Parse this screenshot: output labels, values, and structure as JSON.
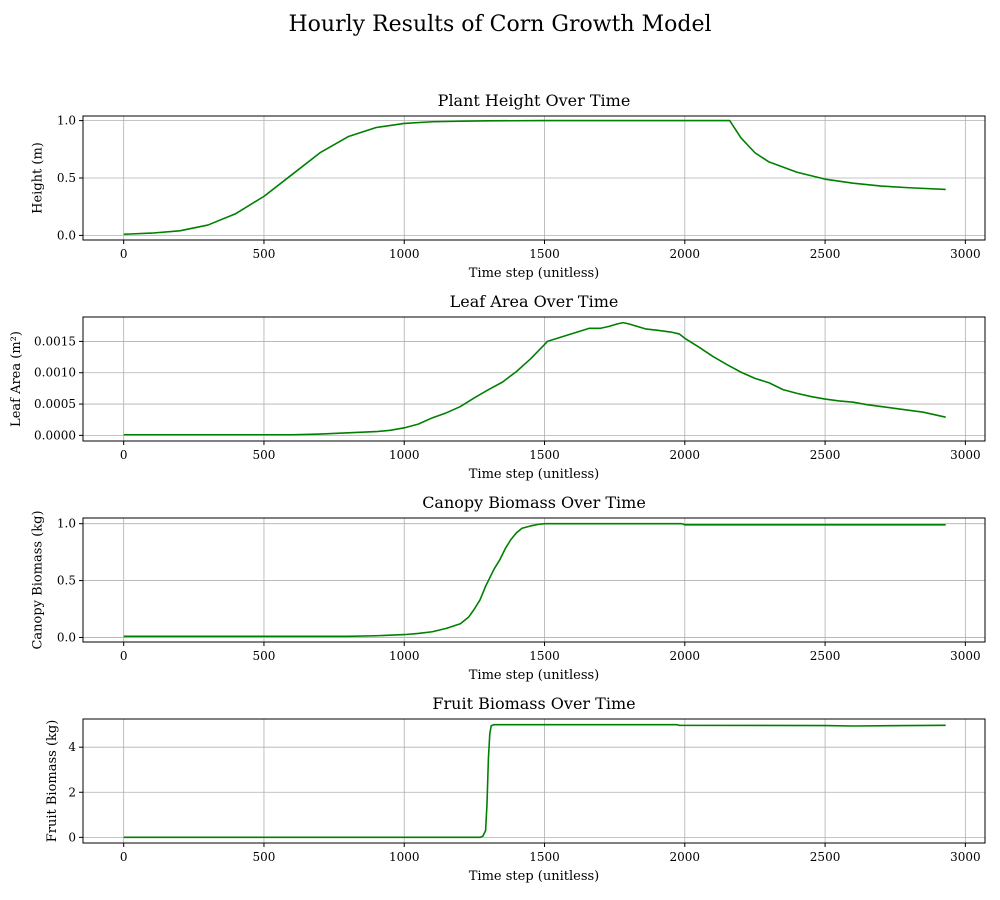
{
  "figure": {
    "title": "Hourly Results of Corn Growth Model"
  },
  "colors": {
    "line": "#008000",
    "grid": "#b0b0b0",
    "axes": "#000000"
  },
  "chart_data": [
    {
      "type": "line",
      "title": "Plant Height Over Time",
      "xlabel": "Time step (unitless)",
      "ylabel": "Height (m)",
      "xlim": [
        -145,
        3070
      ],
      "ylim": [
        -0.04,
        1.04
      ],
      "xticks": [
        0,
        500,
        1000,
        1500,
        2000,
        2500,
        3000
      ],
      "xticklabels": [
        "0",
        "500",
        "1000",
        "1500",
        "2000",
        "2500",
        "3000"
      ],
      "yticks": [
        0,
        0.5,
        1.0
      ],
      "yticklabels": [
        "0.0",
        "0.5",
        "1.0"
      ],
      "grid": true,
      "series": [
        {
          "x": [
            0,
            100,
            200,
            300,
            400,
            500,
            600,
            700,
            800,
            900,
            1000,
            1100,
            1200,
            1300,
            1500,
            1800,
            2000,
            2150,
            2160,
            2200,
            2250,
            2300,
            2400,
            2500,
            2600,
            2700,
            2800,
            2930
          ],
          "values": [
            0.01,
            0.02,
            0.04,
            0.09,
            0.19,
            0.34,
            0.53,
            0.72,
            0.86,
            0.94,
            0.975,
            0.99,
            0.995,
            0.998,
            1.0,
            1.0,
            1.0,
            1.0,
            1.0,
            0.85,
            0.72,
            0.64,
            0.55,
            0.49,
            0.455,
            0.43,
            0.415,
            0.4
          ]
        }
      ]
    },
    {
      "type": "line",
      "title": "Leaf Area Over Time",
      "xlabel": "Time step (unitless)",
      "ylabel": "Leaf Area (m²)",
      "xlim": [
        -145,
        3070
      ],
      "ylim": [
        -9e-05,
        0.00189
      ],
      "xticks": [
        0,
        500,
        1000,
        1500,
        2000,
        2500,
        3000
      ],
      "xticklabels": [
        "0",
        "500",
        "1000",
        "1500",
        "2000",
        "2500",
        "3000"
      ],
      "yticks": [
        0,
        0.0005,
        0.001,
        0.0015
      ],
      "yticklabels": [
        "0.0000",
        "0.0005",
        "0.0010",
        "0.0015"
      ],
      "grid": true,
      "series": [
        {
          "x": [
            0,
            300,
            600,
            700,
            800,
            900,
            950,
            1000,
            1050,
            1100,
            1150,
            1200,
            1250,
            1300,
            1350,
            1400,
            1450,
            1500,
            1510,
            1560,
            1610,
            1660,
            1700,
            1730,
            1760,
            1780,
            1800,
            1830,
            1860,
            1900,
            1950,
            1980,
            2000,
            2050,
            2100,
            2150,
            2200,
            2250,
            2300,
            2350,
            2400,
            2450,
            2500,
            2550,
            2600,
            2650,
            2700,
            2750,
            2800,
            2850,
            2930
          ],
          "values": [
            1e-05,
            1e-05,
            1e-05,
            2e-05,
            4e-05,
            6e-05,
            8e-05,
            0.00012,
            0.00018,
            0.00028,
            0.00036,
            0.00046,
            0.0006,
            0.00073,
            0.00085,
            0.00102,
            0.00122,
            0.00145,
            0.0015,
            0.00157,
            0.00164,
            0.00171,
            0.00171,
            0.00174,
            0.00178,
            0.0018,
            0.00178,
            0.00174,
            0.0017,
            0.00168,
            0.00165,
            0.00162,
            0.00155,
            0.00141,
            0.00126,
            0.00113,
            0.00101,
            0.00091,
            0.00084,
            0.00073,
            0.00067,
            0.00062,
            0.00058,
            0.00055,
            0.00053,
            0.00049,
            0.00046,
            0.00043,
            0.0004,
            0.00037,
            0.00029
          ]
        }
      ]
    },
    {
      "type": "line",
      "title": "Canopy Biomass Over Time",
      "xlabel": "Time step (unitless)",
      "ylabel": "Canopy Biomass (kg)",
      "xlim": [
        -145,
        3070
      ],
      "ylim": [
        -0.04,
        1.05
      ],
      "xticks": [
        0,
        500,
        1000,
        1500,
        2000,
        2500,
        3000
      ],
      "xticklabels": [
        "0",
        "500",
        "1000",
        "1500",
        "2000",
        "2500",
        "3000"
      ],
      "yticks": [
        0,
        0.5,
        1.0
      ],
      "yticklabels": [
        "0.0",
        "0.5",
        "1.0"
      ],
      "grid": true,
      "series": [
        {
          "x": [
            0,
            500,
            800,
            900,
            1000,
            1050,
            1100,
            1150,
            1200,
            1230,
            1250,
            1270,
            1290,
            1300,
            1320,
            1340,
            1360,
            1380,
            1400,
            1420,
            1450,
            1480,
            1500,
            1550,
            1990,
            2000,
            2500,
            2930
          ],
          "values": [
            0.01,
            0.01,
            0.01,
            0.015,
            0.025,
            0.035,
            0.05,
            0.08,
            0.12,
            0.18,
            0.25,
            0.33,
            0.45,
            0.5,
            0.6,
            0.68,
            0.78,
            0.86,
            0.92,
            0.96,
            0.98,
            0.995,
            1.0,
            1.0,
            1.0,
            0.99,
            0.99,
            0.99
          ]
        }
      ]
    },
    {
      "type": "line",
      "title": "Fruit Biomass Over Time",
      "xlabel": "Time step (unitless)",
      "ylabel": "Fruit Biomass (kg)",
      "xlim": [
        -145,
        3070
      ],
      "ylim": [
        -0.25,
        5.25
      ],
      "xticks": [
        0,
        500,
        1000,
        1500,
        2000,
        2500,
        3000
      ],
      "xticklabels": [
        "0",
        "500",
        "1000",
        "1500",
        "2000",
        "2500",
        "3000"
      ],
      "yticks": [
        0,
        2,
        4
      ],
      "yticklabels": [
        "0",
        "2",
        "4"
      ],
      "grid": true,
      "series": [
        {
          "x": [
            0,
            1270,
            1280,
            1290,
            1295,
            1300,
            1305,
            1310,
            1320,
            1500,
            1970,
            1980,
            2500,
            2600,
            2930
          ],
          "values": [
            0.0,
            0.0,
            0.05,
            0.3,
            1.5,
            3.5,
            4.6,
            4.95,
            5.0,
            5.0,
            5.0,
            4.97,
            4.96,
            4.94,
            4.97
          ]
        }
      ]
    }
  ]
}
